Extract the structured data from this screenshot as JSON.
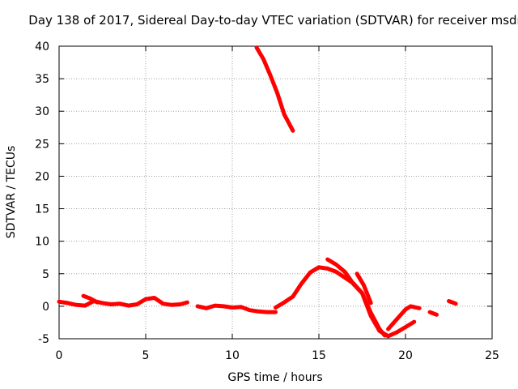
{
  "chart_data": {
    "type": "line",
    "title": "Day 138 of 2017, Sidereal Day-to-day VTEC variation (SDTVAR) for receiver msdr",
    "xlabel": "GPS time / hours",
    "ylabel": "SDTVAR / TECUs",
    "xlim": [
      0,
      25
    ],
    "ylim": [
      -5,
      40
    ],
    "xticks": [
      0,
      5,
      10,
      15,
      20,
      25
    ],
    "yticks": [
      -5,
      0,
      5,
      10,
      15,
      20,
      25,
      30,
      35,
      40
    ],
    "grid": true,
    "series_color": "#ff0000",
    "series": [
      {
        "name": "seg1",
        "x": [
          0,
          0.5,
          1.0,
          1.5,
          2.0,
          2.5,
          3.0,
          3.5,
          4.0,
          4.5,
          5.0,
          5.5,
          6.0,
          6.5,
          7.0,
          7.4
        ],
        "y": [
          0.7,
          0.5,
          0.2,
          0.1,
          0.8,
          0.5,
          0.3,
          0.4,
          0.1,
          0.3,
          1.1,
          1.3,
          0.4,
          0.2,
          0.3,
          0.6
        ]
      },
      {
        "name": "seg1b",
        "x": [
          1.4,
          1.8,
          2.2
        ],
        "y": [
          1.6,
          1.2,
          0.6
        ]
      },
      {
        "name": "seg2",
        "x": [
          8.0,
          8.5,
          9.0,
          9.5,
          10.0,
          10.5,
          11.0,
          11.5,
          12.0,
          12.5
        ],
        "y": [
          0.0,
          -0.3,
          0.1,
          0.0,
          -0.2,
          -0.1,
          -0.6,
          -0.8,
          -0.9,
          -0.9
        ]
      },
      {
        "name": "seg3",
        "x": [
          12.5,
          13.0,
          13.5,
          14.0,
          14.5,
          15.0,
          15.5,
          16.0,
          16.5,
          17.0,
          17.5,
          18.0,
          18.5,
          18.8
        ],
        "y": [
          -0.2,
          0.6,
          1.5,
          3.5,
          5.2,
          6.0,
          5.8,
          5.3,
          4.4,
          3.5,
          2.0,
          -1.0,
          -3.5,
          -4.5
        ]
      },
      {
        "name": "seg4",
        "x": [
          15.5,
          16.0,
          16.5,
          17.0,
          17.5,
          18.0,
          18.5,
          19.0,
          19.5,
          20.0,
          20.5
        ],
        "y": [
          7.2,
          6.4,
          5.3,
          3.4,
          2.0,
          -1.5,
          -3.8,
          -4.6,
          -4.0,
          -3.2,
          -2.4
        ]
      },
      {
        "name": "seg4b",
        "x": [
          17.2,
          17.6,
          18.0
        ],
        "y": [
          5.0,
          3.2,
          0.5
        ]
      },
      {
        "name": "seg5",
        "x": [
          19.0,
          19.5,
          20.0,
          20.3,
          20.8
        ],
        "y": [
          -3.5,
          -2.0,
          -0.5,
          0.0,
          -0.3
        ]
      },
      {
        "name": "seg6",
        "x": [
          21.4,
          21.8
        ],
        "y": [
          -0.9,
          -1.3
        ]
      },
      {
        "name": "seg7",
        "x": [
          22.5,
          22.9
        ],
        "y": [
          0.8,
          0.4
        ]
      },
      {
        "name": "seg8",
        "x": [
          11.4,
          11.8,
          12.2,
          12.6,
          13.0,
          13.5
        ],
        "y": [
          39.8,
          38.0,
          35.5,
          32.8,
          29.5,
          27.0
        ]
      }
    ]
  }
}
